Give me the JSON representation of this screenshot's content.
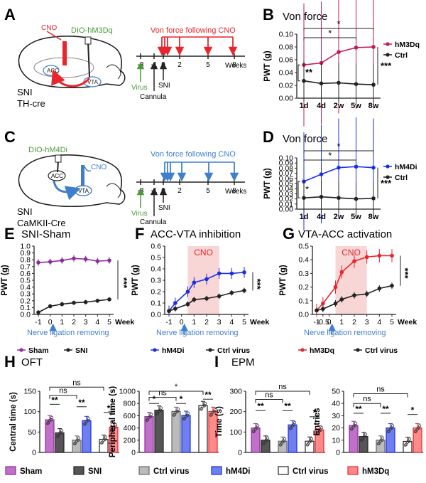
{
  "colors": {
    "red": "#e8242c",
    "green": "#4a9a3a",
    "blue": "#3f7fcc",
    "dblue": "#1a2ee6",
    "purple": "#8a2d9a",
    "magenta": "#c2185b",
    "shade": "#f8d6d6",
    "sham_fill": "#c070c8",
    "snigray": "#555555",
    "ctrlgray": "#bbbbbb",
    "hm4di_fill": "#6f7ff0",
    "white": "#ffffff",
    "hm3dq_fill": "#ff8a8a"
  },
  "panels": {
    "A": {
      "letter": "A",
      "cno": "CNO",
      "virus_label": "DIO-hM3Dq",
      "acc": "ACC",
      "vta": "VTA",
      "model1": "SNI",
      "model2": "TH-cre",
      "timeline_title": "Von force following CNO",
      "ticks": [
        "-3",
        "-1",
        "0",
        "2",
        "5",
        "8"
      ],
      "unit": "Weeks",
      "virus": "Virus",
      "sni": "SNI",
      "cannula": "Cannula"
    },
    "C": {
      "letter": "C",
      "cno": "CNO",
      "virus_label": "DIO-hM4Di",
      "acc": "ACC",
      "vta": "VTA",
      "model1": "SNI",
      "model2": "CaMKII-Cre",
      "timeline_title": "Von force following CNO",
      "ticks": [
        "-3",
        "-1",
        "0",
        "2",
        "5",
        "8"
      ],
      "unit": "Weeks",
      "virus": "Virus",
      "sni": "SNI",
      "cannula": "Cannula"
    },
    "B": {
      "letter": "B",
      "title": "Von force",
      "ylabel": "PWT (g)"
    },
    "D": {
      "letter": "D",
      "title": "Von force",
      "ylabel": "PWT (g)"
    },
    "E": {
      "letter": "E",
      "title": "SNI-Sham",
      "ylabel": "PWT (g)",
      "xunit": "Week",
      "arrow_note": "Nerve ligation removing"
    },
    "F": {
      "letter": "F",
      "title": "ACC-VTA inhibition",
      "ylabel": "PWT (g)",
      "xunit": "Week",
      "cno": "CNO",
      "arrow_note": "Nerve ligation removing"
    },
    "G": {
      "letter": "G",
      "title": "VTA-ACC activation",
      "ylabel": "PWT (g)",
      "xunit": "Week",
      "cno": "CNO",
      "arrow_note": "Nerve ligation removing"
    },
    "H": {
      "letter": "H",
      "title": "OFT",
      "ylabel1": "Central time (s)",
      "ylabel2": "Peripheral time (s)"
    },
    "I": {
      "letter": "I",
      "title": "EPM",
      "ylabel1": "Time (s)",
      "ylabel2": "Entries"
    }
  },
  "stats": {
    "star1": "*",
    "star2": "**",
    "star3": "***",
    "ns": "ns"
  },
  "bottom_legend": [
    "Sham",
    "SNI",
    "Ctrl virus",
    "hM4Di",
    "Ctrl virus",
    "hM3Dq"
  ],
  "chart_data": [
    {
      "id": "B",
      "type": "line",
      "title": "Von force",
      "xlabel": "",
      "ylabel": "PWT (g)",
      "categories": [
        "1d",
        "4d",
        "2w",
        "5w",
        "8w"
      ],
      "ylim": [
        0,
        0.1
      ],
      "yticks": [
        "0.00",
        "0.02",
        "0.04",
        "0.06",
        "0.08",
        "0.10"
      ],
      "series": [
        {
          "name": "hM3Dq",
          "values": [
            0.052,
            0.055,
            0.072,
            0.079,
            0.08
          ]
        },
        {
          "name": "Ctrl",
          "values": [
            0.027,
            0.023,
            0.024,
            0.022,
            0.021
          ]
        }
      ]
    },
    {
      "id": "D",
      "type": "line",
      "title": "Von force",
      "xlabel": "",
      "ylabel": "PWT (g)",
      "categories": [
        "1d",
        "4d",
        "2w",
        "5w",
        "8w"
      ],
      "ylim": [
        0,
        0.1
      ],
      "yticks": [
        "0.00",
        "0.01",
        "0.02",
        "0.03",
        "0.04",
        "0.05",
        "0.06",
        "0.07",
        "0.08",
        "0.09",
        "0.10"
      ],
      "series": [
        {
          "name": "hM4Di",
          "values": [
            0.054,
            0.068,
            0.081,
            0.083,
            0.081
          ]
        },
        {
          "name": "Ctrl",
          "values": [
            0.022,
            0.024,
            0.022,
            0.02,
            0.021
          ]
        }
      ]
    },
    {
      "id": "E",
      "type": "line",
      "title": "SNI-Sham",
      "ylabel": "PWT (g)",
      "xlabel": "Week",
      "x": [
        -1,
        0,
        1,
        2,
        3,
        4,
        5
      ],
      "ylim": [
        0,
        1.0
      ],
      "yticks": [
        "0.0",
        "0.1",
        "0.2",
        "0.3",
        "0.4",
        "0.5",
        "0.6",
        "0.7",
        "0.8",
        "0.9",
        "1.0"
      ],
      "series": [
        {
          "name": "Sham",
          "x": [
            -1,
            0,
            1,
            2,
            3,
            4,
            5
          ],
          "values": [
            0.76,
            0.77,
            0.79,
            0.82,
            0.81,
            0.78,
            0.79
          ]
        },
        {
          "name": "SNI",
          "x": [
            -1,
            0,
            1,
            2,
            3,
            4,
            5
          ],
          "values": [
            0.03,
            0.12,
            0.15,
            0.17,
            0.18,
            0.2,
            0.22
          ]
        }
      ]
    },
    {
      "id": "F",
      "type": "line",
      "title": "ACC-VTA inhibition",
      "ylabel": "PWT (g)",
      "xlabel": "Week",
      "x": [
        "-1",
        "0",
        "1",
        "2",
        "3",
        "4",
        "5"
      ],
      "ylim": [
        0,
        0.6
      ],
      "yticks": [
        "0.0",
        "0.1",
        "0.2",
        "0.3",
        "0.4",
        "0.5",
        "0.6"
      ],
      "series": [
        {
          "name": "hM4Di",
          "x": [
            -1,
            -0.5,
            0.5,
            1,
            2,
            3,
            4,
            5
          ],
          "values": [
            0.03,
            0.1,
            0.2,
            0.28,
            0.31,
            0.36,
            0.36,
            0.37
          ]
        },
        {
          "name": "Ctrl virus",
          "x": [
            -1,
            -0.5,
            0.5,
            1,
            2,
            3,
            4,
            5
          ],
          "values": [
            0.03,
            0.05,
            0.09,
            0.13,
            0.14,
            0.16,
            0.19,
            0.21
          ]
        }
      ]
    },
    {
      "id": "G",
      "type": "line",
      "title": "VTA-ACC activation",
      "ylabel": "PWT (g)",
      "xlabel": "Week",
      "x": [
        "-1",
        "-0.5",
        "0",
        "1",
        "2",
        "3",
        "4",
        "5"
      ],
      "ylim": [
        0,
        0.5
      ],
      "yticks": [
        "0.0",
        "0.1",
        "0.2",
        "0.3",
        "0.4",
        "0.5"
      ],
      "series": [
        {
          "name": "hM3Dq",
          "x": [
            -1,
            -0.5,
            0.5,
            1,
            2,
            3,
            4,
            5
          ],
          "values": [
            0.03,
            0.08,
            0.2,
            0.31,
            0.39,
            0.42,
            0.43,
            0.43
          ]
        },
        {
          "name": "Ctrl virus",
          "x": [
            -1,
            -0.5,
            0.5,
            1,
            2,
            3,
            4,
            5
          ],
          "values": [
            0.03,
            0.04,
            0.08,
            0.11,
            0.14,
            0.15,
            0.19,
            0.21
          ]
        }
      ]
    },
    {
      "id": "H1",
      "type": "bar",
      "ylabel": "Central time (s)",
      "ylim": [
        0,
        150
      ],
      "yticks": [
        "0",
        "50",
        "100",
        "150"
      ],
      "categories": [
        "Sham",
        "SNI",
        "Ctrl virus",
        "hM4Di",
        "Ctrl virus",
        "hM3Dq"
      ],
      "values": [
        80,
        48,
        30,
        78,
        32,
        62
      ]
    },
    {
      "id": "H2",
      "type": "bar",
      "ylabel": "Peripheral time (s)",
      "ylim": [
        0,
        1000
      ],
      "yticks": [
        "0",
        "200",
        "400",
        "600",
        "800",
        "1000"
      ],
      "categories": [
        "Sham",
        "SNI",
        "Ctrl virus",
        "hM4Di",
        "Ctrl virus",
        "hM3Dq"
      ],
      "values": [
        585,
        690,
        670,
        605,
        765,
        670
      ]
    },
    {
      "id": "I1",
      "type": "bar",
      "ylabel": "Time (s)",
      "ylim": [
        0,
        300
      ],
      "yticks": [
        "0",
        "100",
        "200",
        "300"
      ],
      "categories": [
        "Sham",
        "SNI",
        "Ctrl virus",
        "hM4Di",
        "Ctrl virus",
        "hM3Dq"
      ],
      "values": [
        120,
        60,
        55,
        135,
        55,
        110
      ]
    },
    {
      "id": "I2",
      "type": "bar",
      "ylabel": "Entries",
      "ylim": [
        0,
        50
      ],
      "yticks": [
        "0",
        "10",
        "20",
        "30",
        "40",
        "50"
      ],
      "categories": [
        "Sham",
        "SNI",
        "Ctrl virus",
        "hM4Di",
        "Ctrl virus",
        "hM3Dq"
      ],
      "values": [
        22,
        13,
        10,
        20,
        9,
        20
      ]
    }
  ]
}
